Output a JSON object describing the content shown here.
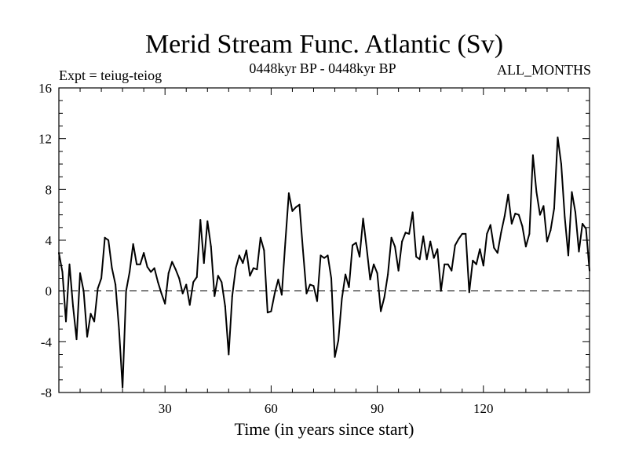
{
  "chart_data": {
    "type": "line",
    "title": "Merid Stream Func. Atlantic (Sv)",
    "subtitle_left": "Expt = teiug-teiog",
    "subtitle_center": "0448kyr BP - 0448kyr BP",
    "subtitle_right": "ALL_MONTHS",
    "xlabel": "Time (in years since start)",
    "ylabel": "",
    "xlim": [
      0,
      150
    ],
    "ylim": [
      -8,
      16
    ],
    "x_ticks": [
      30,
      60,
      90,
      120
    ],
    "y_ticks": [
      -8,
      -4,
      0,
      4,
      8,
      12,
      16
    ],
    "reference_line": 0,
    "series": [
      {
        "name": "Merid Stream Func.",
        "values": [
          3.0,
          1.5,
          -2.4,
          2.1,
          -1.2,
          -3.8,
          1.4,
          0.0,
          -3.6,
          -1.8,
          -2.4,
          0.2,
          1.0,
          4.2,
          4.0,
          1.8,
          0.5,
          -3.0,
          -7.6,
          0.0,
          1.5,
          3.7,
          2.1,
          2.1,
          3.0,
          1.9,
          1.5,
          1.8,
          0.7,
          -0.2,
          -1.0,
          1.4,
          2.3,
          1.7,
          1.0,
          -0.2,
          0.5,
          -1.1,
          0.7,
          1.1,
          5.6,
          2.2,
          5.5,
          3.5,
          -0.4,
          1.2,
          0.7,
          -1.2,
          -5.0,
          -0.4,
          1.8,
          2.8,
          2.2,
          3.2,
          1.2,
          1.8,
          1.7,
          4.2,
          3.2,
          -1.7,
          -1.6,
          -0.2,
          0.9,
          -0.3,
          3.8,
          7.7,
          6.3,
          6.6,
          6.8,
          3.2,
          -0.2,
          0.5,
          0.4,
          -0.8,
          2.8,
          2.6,
          2.8,
          1.0,
          -5.2,
          -3.9,
          -0.6,
          1.3,
          0.3,
          3.6,
          3.8,
          2.7,
          5.7,
          3.4,
          0.9,
          2.1,
          1.4,
          -1.6,
          -0.5,
          1.3,
          4.2,
          3.5,
          1.6,
          3.9,
          4.6,
          4.5,
          6.2,
          2.7,
          2.5,
          4.3,
          2.5,
          3.9,
          2.6,
          3.3,
          0.0,
          2.1,
          2.1,
          1.6,
          3.6,
          4.1,
          4.5,
          4.5,
          -0.1,
          2.4,
          2.1,
          3.3,
          2.0,
          4.5,
          5.2,
          3.4,
          3.0,
          4.6,
          5.9,
          7.6,
          5.3,
          6.1,
          6.0,
          5.1,
          3.5,
          4.5,
          10.7,
          7.8,
          6.0,
          6.7,
          3.9,
          4.8,
          6.5,
          12.1,
          10.0,
          5.8,
          2.8,
          7.8,
          6.2,
          3.1,
          5.3,
          4.9,
          1.6
        ]
      }
    ]
  }
}
